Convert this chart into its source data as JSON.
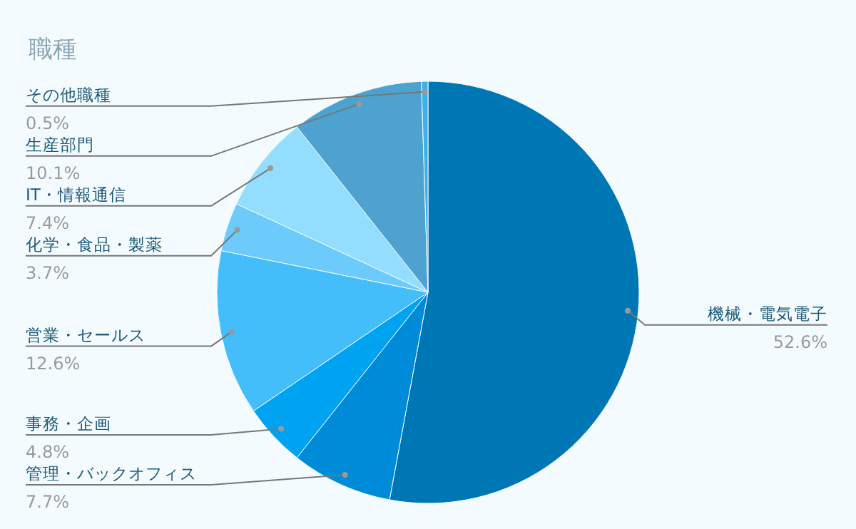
{
  "chart_data": {
    "type": "pie",
    "title": "職種",
    "categories": [
      "機械・電気電子",
      "管理・バックオフィス",
      "事務・企画",
      "営業・セールス",
      "化学・食品・製薬",
      "IT・情報通信",
      "生産部門",
      "その他職種"
    ],
    "values": [
      52.6,
      7.7,
      4.8,
      12.6,
      3.7,
      7.4,
      10.1,
      0.5
    ],
    "value_labels": [
      "52.6%",
      "7.7%",
      "4.8%",
      "12.6%",
      "3.7%",
      "7.4%",
      "10.1%",
      "0.5%"
    ],
    "colors": [
      "#0077b5",
      "#008bd8",
      "#00a2f2",
      "#44bdfb",
      "#6dcbfb",
      "#93defe",
      "#4ea2cf",
      "#3fb0ea"
    ],
    "legend": false
  }
}
